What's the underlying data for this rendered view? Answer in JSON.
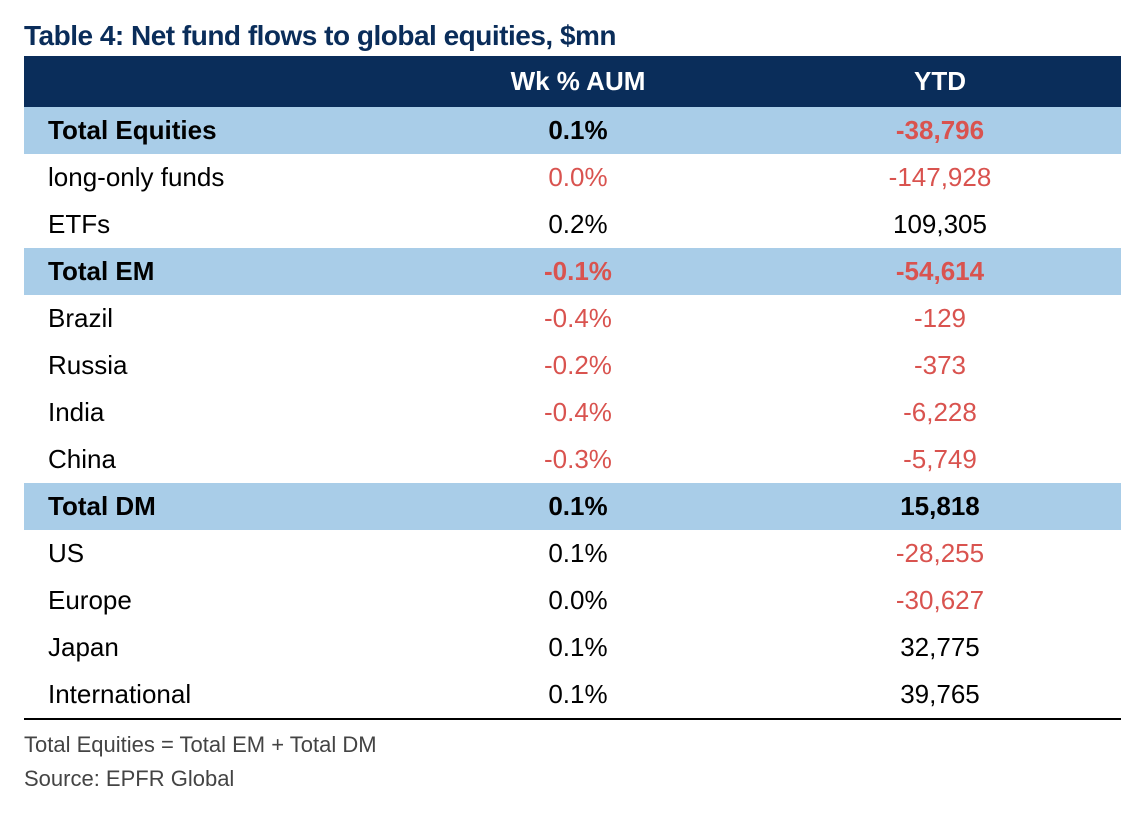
{
  "title": "Table 4: Net fund flows to global equities, $mn",
  "colors": {
    "title_text": "#0a2d5a",
    "header_bg": "#0a2d5a",
    "header_text": "#ffffff",
    "section_bg": "#a9cde8",
    "row_bg": "#ffffff",
    "text": "#000000",
    "negative": "#d9534f",
    "footer_text": "#444444"
  },
  "typography": {
    "title_fontsize": 28,
    "body_fontsize": 26,
    "footer_fontsize": 22,
    "font_family": "Arial"
  },
  "table": {
    "columns": [
      "",
      "Wk % AUM",
      "YTD"
    ],
    "col_widths": [
      "34%",
      "33%",
      "33%"
    ],
    "col_align": [
      "left",
      "center",
      "center"
    ],
    "rows": [
      {
        "label": "Total Equities",
        "wk": "0.1%",
        "wk_neg": false,
        "ytd": "-38,796",
        "ytd_neg": true,
        "section": true,
        "indent": false
      },
      {
        "label": "long-only funds",
        "wk": "0.0%",
        "wk_neg": true,
        "ytd": "-147,928",
        "ytd_neg": true,
        "section": false,
        "indent": true
      },
      {
        "label": "ETFs",
        "wk": "0.2%",
        "wk_neg": false,
        "ytd": "109,305",
        "ytd_neg": false,
        "section": false,
        "indent": true
      },
      {
        "label": "Total EM",
        "wk": "-0.1%",
        "wk_neg": true,
        "ytd": "-54,614",
        "ytd_neg": true,
        "section": true,
        "indent": false
      },
      {
        "label": "Brazil",
        "wk": "-0.4%",
        "wk_neg": true,
        "ytd": "-129",
        "ytd_neg": true,
        "section": false,
        "indent": true
      },
      {
        "label": "Russia",
        "wk": "-0.2%",
        "wk_neg": true,
        "ytd": "-373",
        "ytd_neg": true,
        "section": false,
        "indent": true
      },
      {
        "label": "India",
        "wk": "-0.4%",
        "wk_neg": true,
        "ytd": "-6,228",
        "ytd_neg": true,
        "section": false,
        "indent": true
      },
      {
        "label": "China",
        "wk": "-0.3%",
        "wk_neg": true,
        "ytd": "-5,749",
        "ytd_neg": true,
        "section": false,
        "indent": true
      },
      {
        "label": "Total DM",
        "wk": "0.1%",
        "wk_neg": false,
        "ytd": "15,818",
        "ytd_neg": false,
        "section": true,
        "indent": false
      },
      {
        "label": "US",
        "wk": "0.1%",
        "wk_neg": false,
        "ytd": "-28,255",
        "ytd_neg": true,
        "section": false,
        "indent": true
      },
      {
        "label": "Europe",
        "wk": "0.0%",
        "wk_neg": false,
        "ytd": "-30,627",
        "ytd_neg": true,
        "section": false,
        "indent": true
      },
      {
        "label": "Japan",
        "wk": "0.1%",
        "wk_neg": false,
        "ytd": "32,775",
        "ytd_neg": false,
        "section": false,
        "indent": true
      },
      {
        "label": "International",
        "wk": "0.1%",
        "wk_neg": false,
        "ytd": "39,765",
        "ytd_neg": false,
        "section": false,
        "indent": true
      }
    ]
  },
  "footer": {
    "note": "Total Equities = Total EM + Total DM",
    "source": "Source: EPFR Global"
  }
}
